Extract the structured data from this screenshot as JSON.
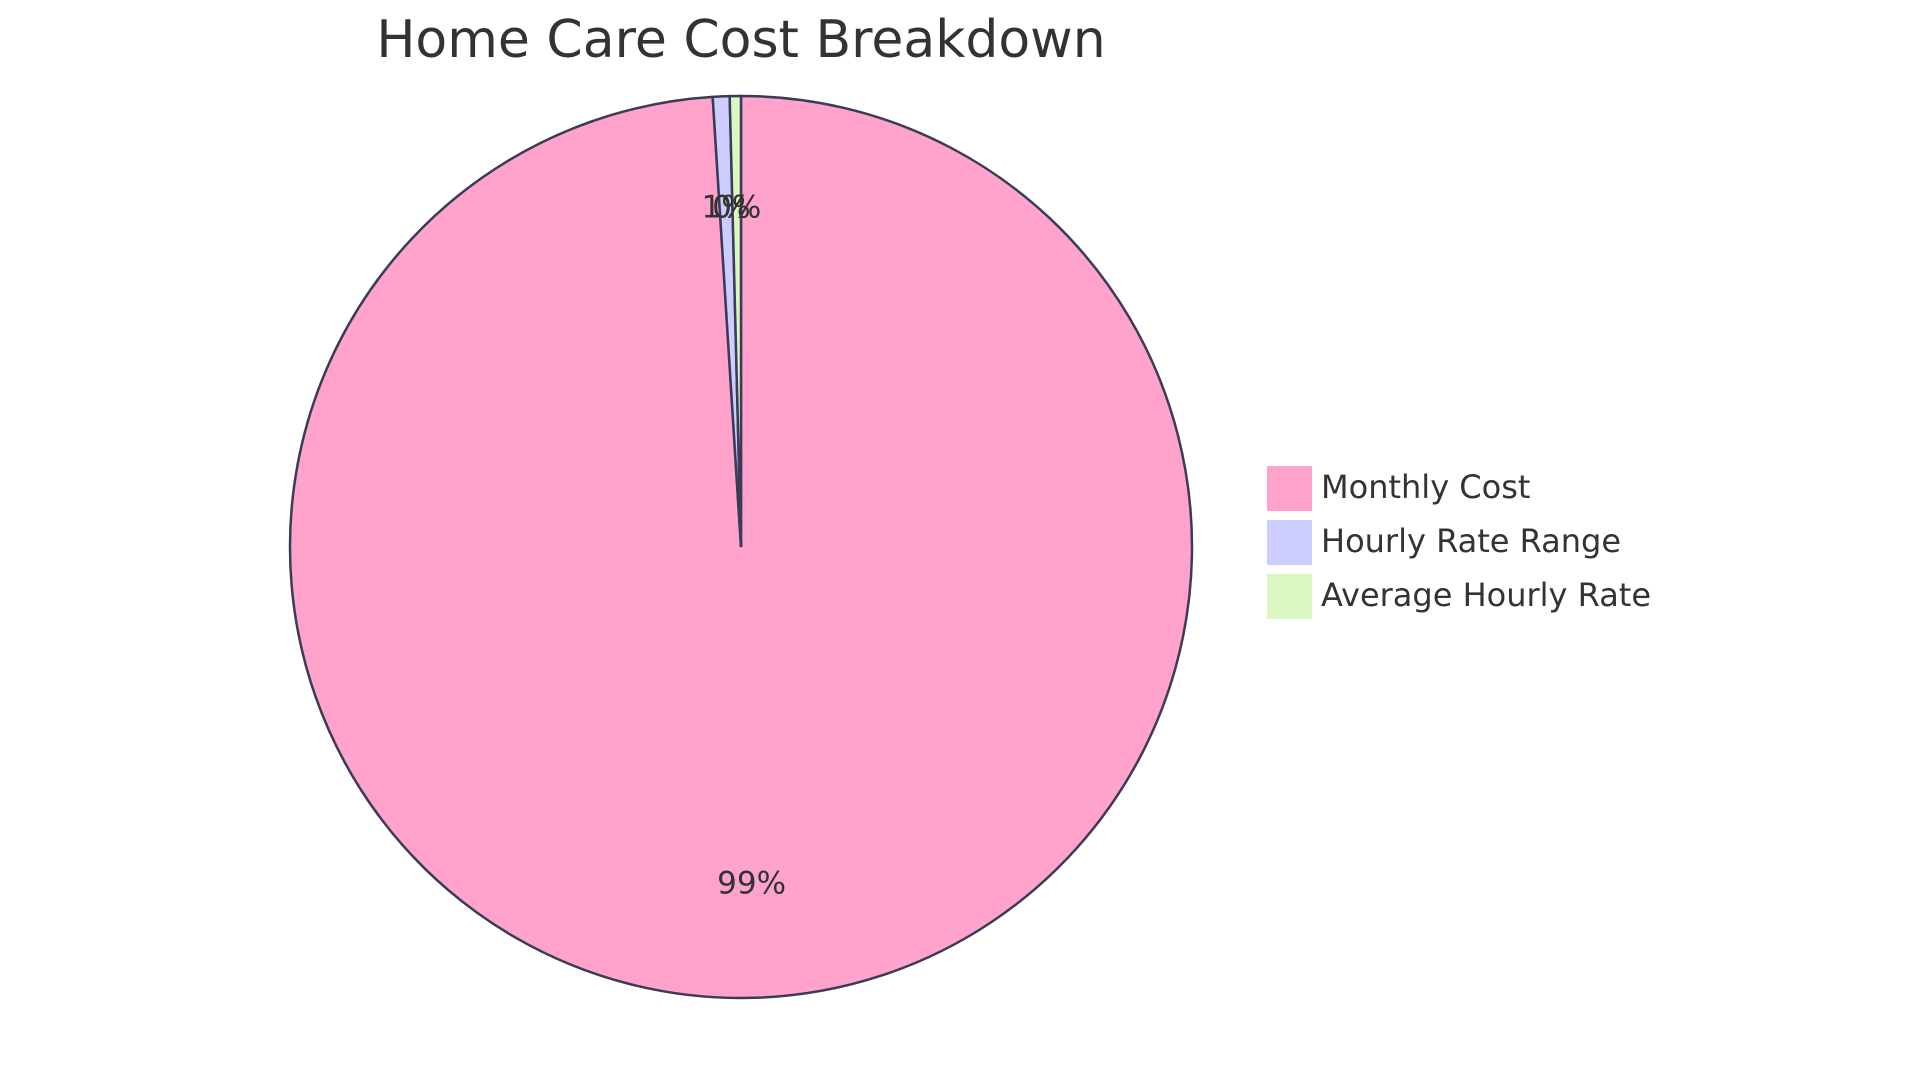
{
  "chart_data": {
    "type": "pie",
    "title": "Home Care Cost Breakdown",
    "categories": [
      "Monthly Cost",
      "Hourly Rate Range",
      "Average Hourly Rate"
    ],
    "values": [
      99,
      0.6,
      0.4
    ],
    "value_labels": [
      "99%",
      "1%",
      "0%"
    ],
    "colors": [
      "#FFA3CD",
      "#CDCDFF",
      "#DBF8C3"
    ],
    "legend": "right"
  }
}
